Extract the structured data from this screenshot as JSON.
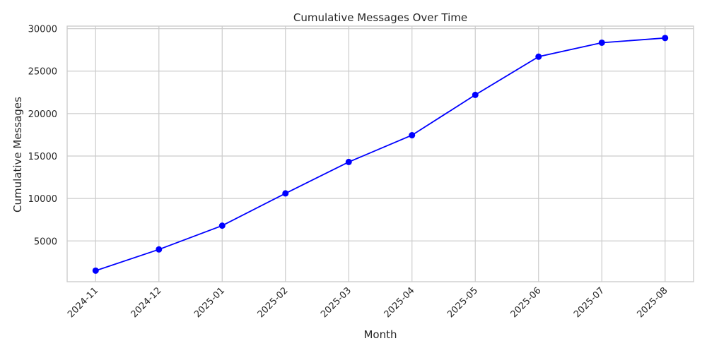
{
  "chart_data": {
    "type": "line",
    "title": "Cumulative Messages Over Time",
    "xlabel": "Month",
    "ylabel": "Cumulative Messages",
    "categories": [
      "2024-11",
      "2024-12",
      "2025-01",
      "2025-02",
      "2025-03",
      "2025-04",
      "2025-05",
      "2025-06",
      "2025-07",
      "2025-08"
    ],
    "series": [
      {
        "values": [
          1500,
          4000,
          6800,
          10600,
          14300,
          17450,
          22200,
          26700,
          28350,
          28900
        ]
      }
    ],
    "yticks": [
      5000,
      10000,
      15000,
      20000,
      25000,
      30000
    ],
    "ylim": [
      200,
      30300
    ],
    "grid": true,
    "colors": {
      "line": "#0000ff",
      "marker": "#0000ff",
      "grid": "#cccccc"
    }
  }
}
